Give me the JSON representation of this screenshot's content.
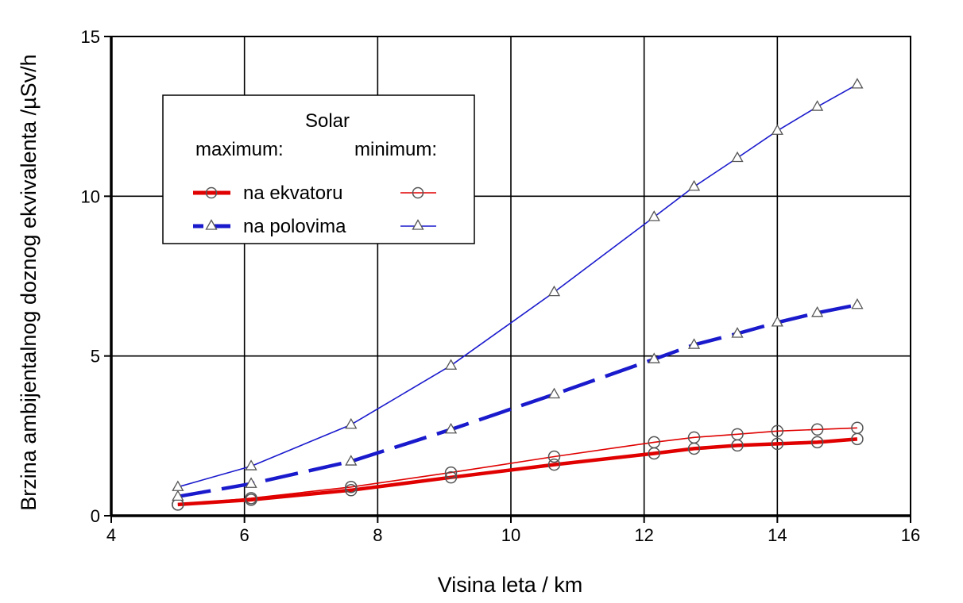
{
  "chart_data": {
    "type": "line",
    "xlabel": "Visina leta / km",
    "ylabel": "Brzina ambijentalnog doznog ekvivalenta /µSv/h",
    "xlim": [
      4,
      16
    ],
    "ylim": [
      0,
      15
    ],
    "x_ticks": [
      "4",
      "6",
      "8",
      "10",
      "12",
      "14",
      "16"
    ],
    "y_ticks": [
      "0",
      "5",
      "10",
      "15"
    ],
    "grid": true,
    "legend": {
      "placement": "top-left",
      "title": "Solar",
      "col_max": "maximum:",
      "col_min": "minimum:",
      "row_equator": "na ekvatoru",
      "row_poles": "na polovima"
    },
    "series": [
      {
        "name": "na ekvatoru (maximum)",
        "color": "#e00000",
        "style": "solid-thick",
        "marker": "circle",
        "x": [
          5.0,
          6.1,
          7.6,
          9.1,
          10.65,
          12.15,
          12.75,
          13.4,
          14.0,
          14.6,
          15.2
        ],
        "y": [
          0.35,
          0.5,
          0.8,
          1.2,
          1.6,
          1.95,
          2.1,
          2.2,
          2.25,
          2.3,
          2.4
        ]
      },
      {
        "name": "na ekvatoru (minimum)",
        "color": "#e00000",
        "style": "solid-thin",
        "marker": "circle",
        "x": [
          5.0,
          6.1,
          7.6,
          9.1,
          10.65,
          12.15,
          12.75,
          13.4,
          14.0,
          14.6,
          15.2
        ],
        "y": [
          0.35,
          0.55,
          0.9,
          1.35,
          1.85,
          2.3,
          2.45,
          2.55,
          2.65,
          2.7,
          2.75
        ]
      },
      {
        "name": "na polovima (maximum)",
        "color": "#1a1acd",
        "style": "dashed-thick",
        "marker": "triangle",
        "x": [
          5.0,
          6.1,
          7.6,
          9.1,
          10.65,
          12.15,
          12.75,
          13.4,
          14.0,
          14.6,
          15.2
        ],
        "y": [
          0.6,
          1.0,
          1.7,
          2.7,
          3.8,
          4.9,
          5.35,
          5.7,
          6.05,
          6.35,
          6.6
        ]
      },
      {
        "name": "na polovima (minimum)",
        "color": "#1a1acd",
        "style": "solid-thin",
        "marker": "triangle",
        "x": [
          5.0,
          6.1,
          7.6,
          9.1,
          10.65,
          12.15,
          12.75,
          13.4,
          14.0,
          14.6,
          15.2
        ],
        "y": [
          0.9,
          1.55,
          2.85,
          4.7,
          7.0,
          9.35,
          10.3,
          11.2,
          12.05,
          12.8,
          13.5
        ]
      }
    ]
  }
}
